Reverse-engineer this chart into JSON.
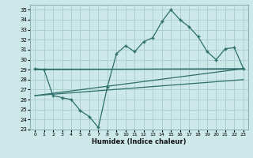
{
  "xlabel": "Humidex (Indice chaleur)",
  "bg_color": "#cce8e8",
  "grid_color": "#b0d0d0",
  "line_color": "#2d6e6a",
  "xlim": [
    -0.5,
    23.5
  ],
  "ylim": [
    23,
    35.5
  ],
  "yticks": [
    23,
    24,
    25,
    26,
    27,
    28,
    29,
    30,
    31,
    32,
    33,
    34,
    35
  ],
  "xticks": [
    0,
    1,
    2,
    3,
    4,
    5,
    6,
    7,
    8,
    9,
    10,
    11,
    12,
    13,
    14,
    15,
    16,
    17,
    18,
    19,
    20,
    21,
    22,
    23
  ],
  "series1_x": [
    0,
    1,
    2,
    3,
    4,
    5,
    6,
    7,
    8,
    9,
    10,
    11,
    12,
    13,
    14,
    15,
    16,
    17,
    18,
    19,
    20,
    21,
    22,
    23
  ],
  "series1_y": [
    29.1,
    29.0,
    26.4,
    26.2,
    26.0,
    24.9,
    24.3,
    23.2,
    27.3,
    30.6,
    31.4,
    30.8,
    31.8,
    32.2,
    33.8,
    35.0,
    34.0,
    33.3,
    32.3,
    30.8,
    30.0,
    31.1,
    31.2,
    29.1
  ],
  "trend1_x": [
    0,
    23
  ],
  "trend1_y": [
    29.1,
    29.1
  ],
  "trend2_x": [
    0,
    23
  ],
  "trend2_y": [
    29.0,
    29.1
  ],
  "trend3_x": [
    0,
    23
  ],
  "trend3_y": [
    26.4,
    29.1
  ],
  "trend4_x": [
    0,
    23
  ],
  "trend4_y": [
    26.4,
    28.0
  ]
}
